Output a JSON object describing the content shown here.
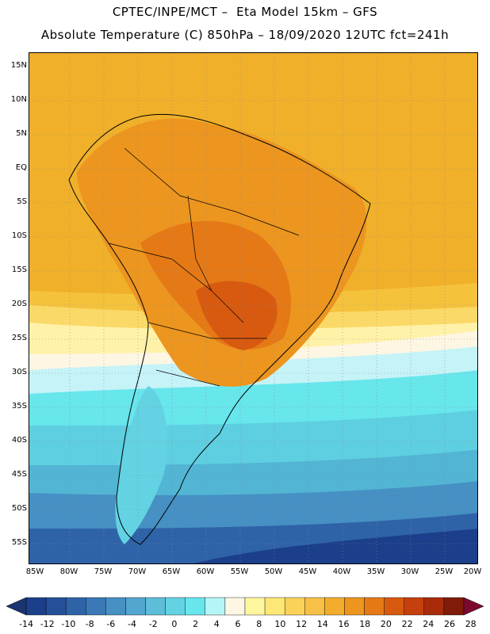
{
  "title": {
    "line1": "CPTEC/INPE/MCT –  Eta Model 15km – GFS",
    "line2": "Absolute Temperature (C) 850hPa – 18/09/2020 12UTC fct=241h"
  },
  "map": {
    "lat_labels": [
      "15N",
      "10N",
      "5N",
      "EQ",
      "5S",
      "10S",
      "15S",
      "20S",
      "25S",
      "30S",
      "35S",
      "40S",
      "45S",
      "50S",
      "55S"
    ],
    "lon_labels": [
      "85W",
      "80W",
      "75W",
      "70W",
      "65W",
      "60W",
      "55W",
      "50W",
      "45W",
      "40W",
      "35W",
      "30W",
      "25W",
      "20W"
    ]
  },
  "colorbar": {
    "labels": [
      "-14",
      "-12",
      "-10",
      "-8",
      "-6",
      "-4",
      "-2",
      "0",
      "2",
      "4",
      "6",
      "8",
      "10",
      "12",
      "14",
      "16",
      "18",
      "20",
      "22",
      "24",
      "26",
      "28"
    ],
    "colors": [
      "#1b3f8a",
      "#254f99",
      "#2f63a8",
      "#3a78b6",
      "#4690c3",
      "#52a6cf",
      "#5ebdd9",
      "#63d3e3",
      "#67e6ec",
      "#b5f5f8",
      "#fdf6e3",
      "#fff6a0",
      "#fde776",
      "#fbd258",
      "#f8c047",
      "#f2ad2c",
      "#ec951f",
      "#e57916",
      "#d85a10",
      "#c6400d",
      "#a92b0a",
      "#7f1b08"
    ],
    "low_arrow_color": "#1a3470",
    "high_arrow_color": "#7d0a2e"
  }
}
